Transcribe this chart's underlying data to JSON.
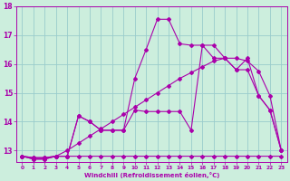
{
  "xlabel": "Windchill (Refroidissement éolien,°C)",
  "background_color": "#cceedd",
  "grid_color": "#99cccc",
  "line_color": "#aa00aa",
  "xlim": [
    -0.5,
    23.5
  ],
  "ylim": [
    12.6,
    18.0
  ],
  "yticks": [
    13,
    14,
    15,
    16,
    17,
    18
  ],
  "xtick_labels": [
    "0",
    "1",
    "2",
    "3",
    "4",
    "5",
    "6",
    "7",
    "8",
    "9",
    "10",
    "11",
    "12",
    "13",
    "14",
    "15",
    "16",
    "17",
    "18",
    "19",
    "20",
    "21",
    "22",
    "23"
  ],
  "series": [
    [
      12.8,
      12.7,
      12.7,
      12.8,
      12.8,
      14.2,
      14.0,
      13.7,
      13.7,
      13.7,
      15.5,
      16.5,
      17.55,
      17.55,
      16.7,
      16.65,
      16.65,
      16.2,
      16.2,
      15.8,
      16.2,
      14.9,
      14.4,
      13.0
    ],
    [
      12.8,
      12.7,
      12.7,
      12.8,
      12.8,
      14.2,
      14.0,
      13.7,
      13.7,
      13.7,
      14.4,
      14.35,
      14.35,
      14.35,
      14.35,
      13.7,
      16.65,
      16.65,
      16.2,
      15.8,
      15.8,
      14.9,
      14.4,
      13.0
    ],
    [
      12.8,
      12.75,
      12.75,
      12.8,
      12.8,
      12.8,
      12.8,
      12.8,
      12.8,
      12.8,
      12.8,
      12.8,
      12.8,
      12.8,
      12.8,
      12.8,
      12.8,
      12.8,
      12.8,
      12.8,
      12.8,
      12.8,
      12.8,
      12.8
    ],
    [
      12.8,
      12.75,
      12.75,
      12.8,
      13.0,
      13.25,
      13.5,
      13.75,
      14.0,
      14.25,
      14.5,
      14.75,
      15.0,
      15.25,
      15.5,
      15.7,
      15.9,
      16.1,
      16.2,
      16.2,
      16.1,
      15.75,
      14.9,
      13.0
    ]
  ]
}
